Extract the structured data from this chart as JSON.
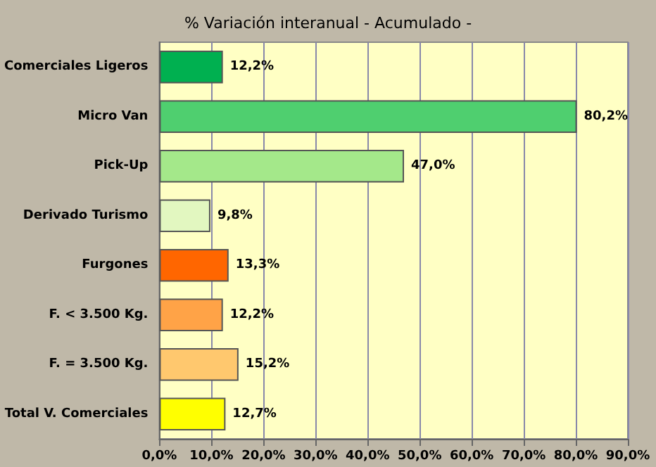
{
  "chart_data": {
    "type": "bar",
    "orientation": "horizontal",
    "title": "% Variación interanual - Acumulado -",
    "categories": [
      "Comerciales Ligeros",
      "Micro Van",
      "Pick-Up",
      "Derivado Turismo",
      "Furgones",
      "F. < 3.500 Kg.",
      "F. = 3.500 Kg.",
      "Total V. Comerciales"
    ],
    "values": [
      12.2,
      80.2,
      47.0,
      9.8,
      13.3,
      12.2,
      15.2,
      12.7
    ],
    "value_labels": [
      "12,2%",
      "80,2%",
      "47,0%",
      "9,8%",
      "13,3%",
      "12,2%",
      "15,2%",
      "12,7%"
    ],
    "colors": [
      "#00b050",
      "#4fcf6f",
      "#a4e88a",
      "#e2f7c0",
      "#ff6600",
      "#ffa347",
      "#ffc86e",
      "#ffff00"
    ],
    "xlim": [
      0,
      90
    ],
    "xticks": [
      {
        "value": 0,
        "label": "0,0%"
      },
      {
        "value": 10,
        "label": "10,0%"
      },
      {
        "value": 20,
        "label": "20,0%"
      },
      {
        "value": 30,
        "label": "30,0%"
      },
      {
        "value": 40,
        "label": "40,0%"
      },
      {
        "value": 50,
        "label": "50,0%"
      },
      {
        "value": 60,
        "label": "60,0%"
      },
      {
        "value": 70,
        "label": "70,0%"
      },
      {
        "value": 80,
        "label": "80,0%"
      },
      {
        "value": 90,
        "label": "90,0%"
      }
    ],
    "grid": "x"
  }
}
